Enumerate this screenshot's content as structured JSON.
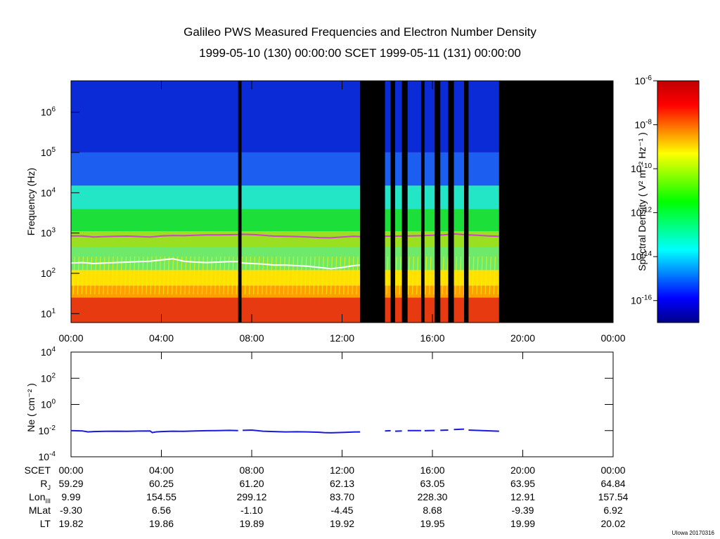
{
  "title": "Galileo PWS Measured Frequencies and Electron Number Density",
  "subtitle": "1999-05-10 (130) 00:00:00 SCET 1999-05-11 (131) 00:00:00",
  "credit": "UIowa 20170316",
  "chart_data": [
    {
      "type": "heatmap",
      "name": "frequency-spectrogram",
      "ylabel": "Frequency (Hz)",
      "yscale": "log",
      "ylim": [
        6,
        6000000
      ],
      "xlim_hours": [
        0,
        24
      ],
      "x_tick_labels": [
        "00:00",
        "04:00",
        "08:00",
        "12:00",
        "16:00",
        "20:00",
        "00:00"
      ],
      "y_tick_labels": [
        {
          "base": "10",
          "exp": "1",
          "value": 10
        },
        {
          "base": "10",
          "exp": "2",
          "value": 100
        },
        {
          "base": "10",
          "exp": "3",
          "value": 1000
        },
        {
          "base": "10",
          "exp": "4",
          "value": 10000
        },
        {
          "base": "10",
          "exp": "5",
          "value": 100000
        },
        {
          "base": "10",
          "exp": "6",
          "value": 1000000
        }
      ],
      "colorbar": {
        "label": "Spectral Density ( V² m⁻² Hz⁻¹ )",
        "scale": "log",
        "range": [
          1e-17,
          1e-06
        ],
        "tick_labels": [
          {
            "base": "10",
            "exp": "-6",
            "value": 1e-06
          },
          {
            "base": "10",
            "exp": "-8",
            "value": 1e-08
          },
          {
            "base": "10",
            "exp": "-10",
            "value": 1e-10
          },
          {
            "base": "10",
            "exp": "-12",
            "value": 1e-12
          },
          {
            "base": "10",
            "exp": "-14",
            "value": 1e-14
          },
          {
            "base": "10",
            "exp": "-16",
            "value": 1e-16
          }
        ],
        "colors": [
          "#00008a",
          "#0000ff",
          "#0080ff",
          "#00ffff",
          "#00ff80",
          "#00ff00",
          "#80ff00",
          "#ffff00",
          "#ff8000",
          "#ff0000",
          "#c00000"
        ]
      },
      "bands": [
        {
          "from": 6,
          "to": 25,
          "color": "#e83a10"
        },
        {
          "from": 25,
          "to": 50,
          "color": "#ffa000"
        },
        {
          "from": 50,
          "to": 120,
          "color": "#ffe000"
        },
        {
          "from": 120,
          "to": 450,
          "color": "#6ee96a"
        },
        {
          "from": 450,
          "to": 1100,
          "color": "#9ae020"
        },
        {
          "from": 1100,
          "to": 4000,
          "color": "#1cdf3a"
        },
        {
          "from": 4000,
          "to": 15000,
          "color": "#22e6c6"
        },
        {
          "from": 15000,
          "to": 100000,
          "color": "#1c5ef0"
        },
        {
          "from": 100000,
          "to": 6000000,
          "color": "#0a2bd6"
        }
      ],
      "data_gaps_hours": [
        [
          7.4,
          7.55
        ],
        [
          12.8,
          13.9
        ],
        [
          14.15,
          14.35
        ],
        [
          14.65,
          14.9
        ],
        [
          15.5,
          15.65
        ],
        [
          16.1,
          16.35
        ],
        [
          16.7,
          16.95
        ],
        [
          17.4,
          17.6
        ],
        [
          18.95,
          24.0
        ]
      ],
      "series": [
        {
          "name": "upper-frequency-line",
          "color": "#cc44cc",
          "x_hours": [
            0,
            0.5,
            1,
            1.5,
            2,
            2.5,
            3,
            3.5,
            4,
            4.5,
            5,
            5.5,
            6,
            6.5,
            7,
            7.4,
            7.6,
            8,
            8.5,
            9,
            9.5,
            10,
            10.5,
            11,
            11.5,
            12,
            12.5,
            12.8,
            14.9,
            15.5,
            16,
            16.5,
            17,
            17.5,
            18,
            18.5,
            18.95
          ],
          "values": [
            850,
            850,
            800,
            820,
            830,
            840,
            820,
            800,
            850,
            870,
            860,
            880,
            900,
            900,
            910,
            920,
            930,
            920,
            880,
            840,
            830,
            820,
            800,
            770,
            760,
            800,
            830,
            820,
            850,
            860,
            880,
            900,
            950,
            900,
            880,
            850,
            830
          ]
        },
        {
          "name": "lower-frequency-line",
          "color": "#ffffff",
          "x_hours": [
            0,
            0.5,
            1,
            1.5,
            2,
            2.5,
            3,
            3.5,
            4,
            4.5,
            5,
            5.5,
            6,
            6.5,
            7,
            7.4,
            7.6,
            8,
            8.5,
            9,
            9.5,
            10,
            10.5,
            11,
            11.5,
            12,
            12.5,
            12.8
          ],
          "values": [
            180,
            185,
            175,
            180,
            185,
            190,
            195,
            200,
            215,
            230,
            200,
            190,
            185,
            190,
            195,
            195,
            180,
            175,
            170,
            160,
            160,
            155,
            150,
            140,
            130,
            140,
            155,
            160
          ]
        }
      ]
    },
    {
      "type": "line",
      "name": "electron-density",
      "ylabel": "Ne ( cm⁻² )",
      "yscale": "log",
      "ylim": [
        0.0001,
        10000
      ],
      "xlim_hours": [
        0,
        24
      ],
      "x_tick_labels": [
        "00:00",
        "04:00",
        "08:00",
        "12:00",
        "16:00",
        "20:00",
        "00:00"
      ],
      "y_tick_labels": [
        {
          "base": "10",
          "exp": "4",
          "value": 10000
        },
        {
          "base": "10",
          "exp": "2",
          "value": 100
        },
        {
          "base": "10",
          "exp": "0",
          "value": 1
        },
        {
          "base": "10",
          "exp": "-2",
          "value": 0.01
        },
        {
          "base": "10",
          "exp": "-4",
          "value": 0.0001
        }
      ],
      "series": [
        {
          "name": "Ne",
          "color": "#1a1adb",
          "segments": [
            {
              "x_hours": [
                0,
                0.5,
                0.75,
                1,
                1.5,
                2,
                2.5,
                3,
                3.5,
                3.6,
                3.75,
                4,
                4.5,
                5,
                5.5,
                6,
                6.5,
                7,
                7.4
              ],
              "values": [
                0.01,
                0.0095,
                0.008,
                0.0085,
                0.0088,
                0.009,
                0.0088,
                0.0092,
                0.0095,
                0.007,
                0.008,
                0.0085,
                0.009,
                0.0088,
                0.0095,
                0.0098,
                0.01,
                0.0105,
                0.01
              ]
            },
            {
              "x_hours": [
                7.6,
                8,
                8.5,
                9,
                9.5,
                10,
                10.5,
                11,
                11.2,
                11.5,
                12,
                12.5,
                12.8
              ],
              "values": [
                0.0105,
                0.011,
                0.009,
                0.0085,
                0.008,
                0.0082,
                0.008,
                0.0075,
                0.007,
                0.0068,
                0.0072,
                0.0078,
                0.008
              ]
            },
            {
              "x_hours": [
                13.9,
                14.15
              ],
              "values": [
                0.0095,
                0.0098
              ]
            },
            {
              "x_hours": [
                14.35,
                14.65
              ],
              "values": [
                0.009,
                0.0095
              ]
            },
            {
              "x_hours": [
                14.9,
                15.5
              ],
              "values": [
                0.01,
                0.01
              ]
            },
            {
              "x_hours": [
                15.65,
                16.1
              ],
              "values": [
                0.0098,
                0.0102
              ]
            },
            {
              "x_hours": [
                16.35,
                16.7
              ],
              "values": [
                0.0105,
                0.011
              ]
            },
            {
              "x_hours": [
                16.95,
                17.4
              ],
              "values": [
                0.012,
                0.013
              ]
            },
            {
              "x_hours": [
                17.6,
                18.95
              ],
              "values": [
                0.011,
                0.009
              ]
            }
          ]
        }
      ]
    }
  ],
  "ephemeris": [
    {
      "label": "SCET",
      "sub": "",
      "values": [
        "00:00",
        "04:00",
        "08:00",
        "12:00",
        "16:00",
        "20:00",
        "00:00"
      ]
    },
    {
      "label": "R",
      "sub": "J",
      "values": [
        "59.29",
        "60.25",
        "61.20",
        "62.13",
        "63.05",
        "63.95",
        "64.84"
      ]
    },
    {
      "label": "Lon",
      "sub": "III",
      "values": [
        "9.99",
        "154.55",
        "299.12",
        "83.70",
        "228.30",
        "12.91",
        "157.54"
      ]
    },
    {
      "label": "MLat",
      "sub": "",
      "values": [
        "-9.30",
        "6.56",
        "-1.10",
        "-4.45",
        "8.68",
        "-9.39",
        "6.92"
      ]
    },
    {
      "label": "LT",
      "sub": "",
      "values": [
        "19.82",
        "19.86",
        "19.89",
        "19.92",
        "19.95",
        "19.99",
        "20.02"
      ]
    }
  ]
}
